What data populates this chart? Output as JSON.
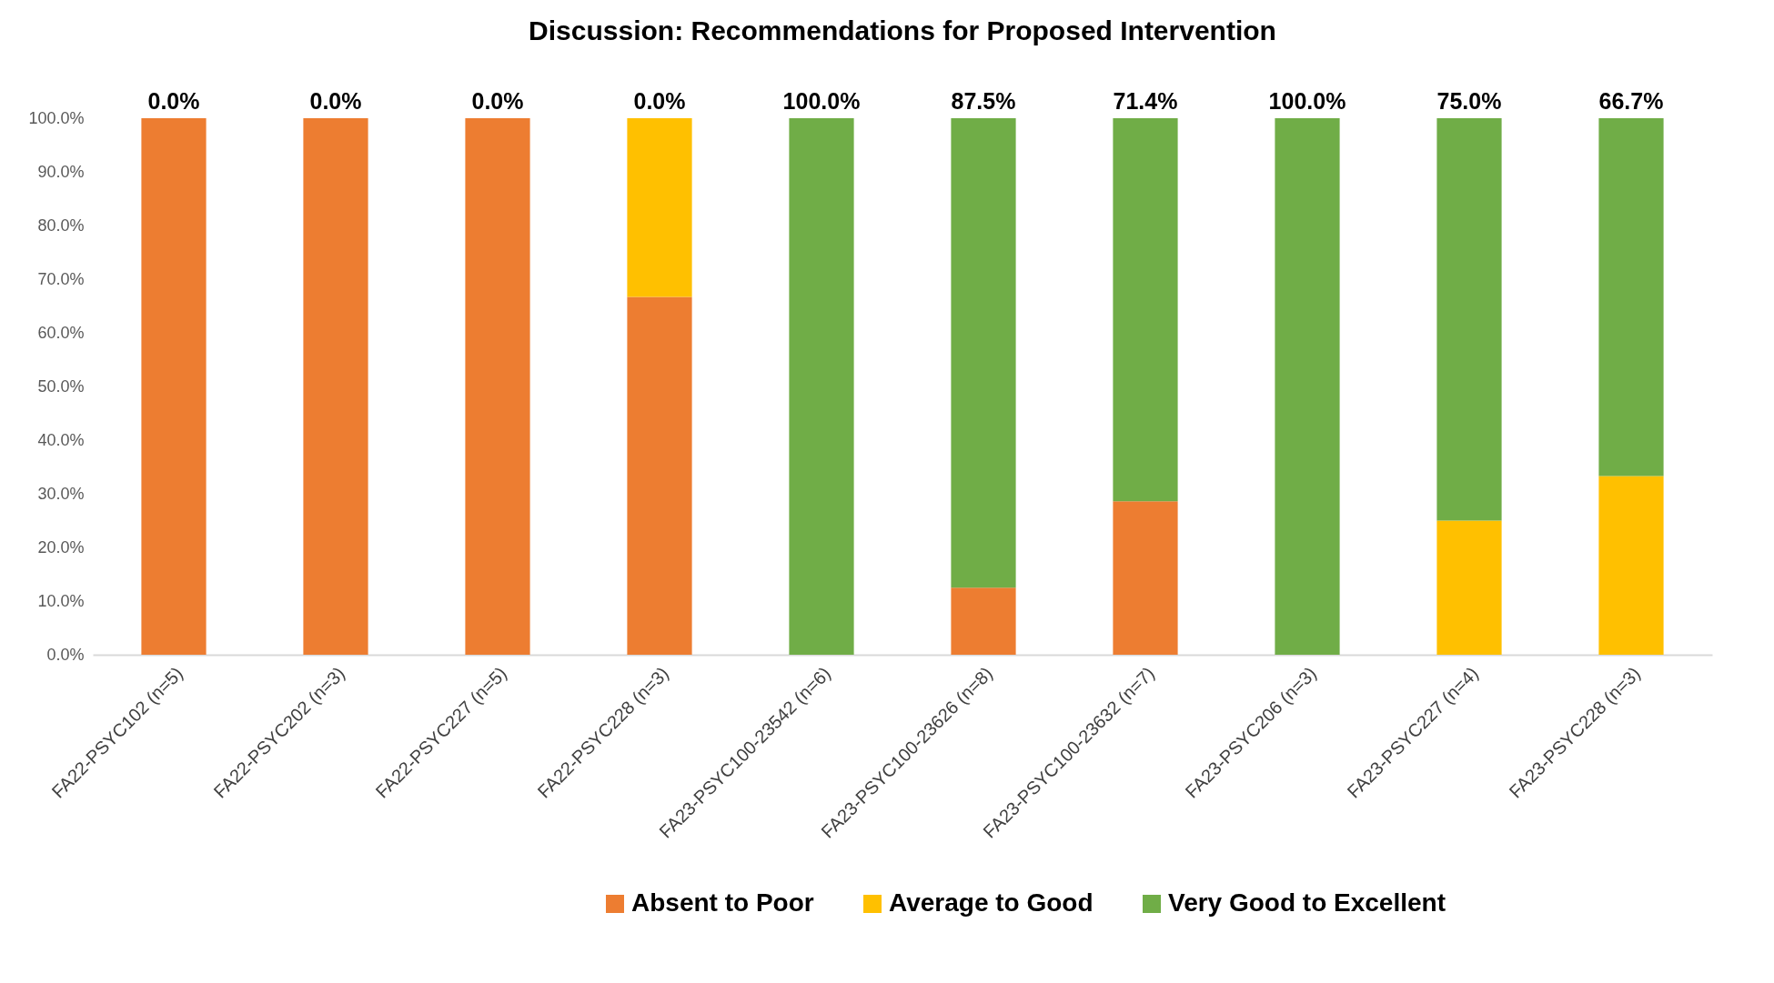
{
  "chart_data": {
    "type": "bar",
    "title": "Discussion: Recommendations for Proposed Intervention",
    "categories": [
      "FA22-PSYC102 (n=5)",
      "FA22-PSYC202 (n=3)",
      "FA22-PSYC227 (n=5)",
      "FA22-PSYC228 (n=3)",
      "FA23-PSYC100-23542 (n=6)",
      "FA23-PSYC100-23626 (n=8)",
      "FA23-PSYC100-23632 (n=7)",
      "FA23-PSYC206 (n=3)",
      "FA23-PSYC227 (n=4)",
      "FA23-PSYC228 (n=3)"
    ],
    "series": [
      {
        "name": "Absent to Poor",
        "color": "#ed7d31",
        "values": [
          100,
          100,
          100,
          66.7,
          0,
          12.5,
          28.6,
          0,
          0,
          0
        ]
      },
      {
        "name": "Average to Good",
        "color": "#ffc000",
        "values": [
          0,
          0,
          0,
          33.3,
          0,
          0,
          0,
          0,
          25,
          33.3
        ]
      },
      {
        "name": "Very Good to Excellent",
        "color": "#70ad47",
        "values": [
          0,
          0,
          0,
          0,
          100,
          87.5,
          71.4,
          100,
          75,
          66.7
        ],
        "value_labels": [
          "0.0%",
          "0.0%",
          "0.0%",
          "0.0%",
          "100.0%",
          "87.5%",
          "71.4%",
          "100.0%",
          "75.0%",
          "66.7%"
        ]
      }
    ],
    "stacked": true,
    "ylim": [
      0,
      100
    ],
    "yticks": [
      {
        "value": 0,
        "label": "0.0%"
      },
      {
        "value": 10,
        "label": "10.0%"
      },
      {
        "value": 20,
        "label": "20.0%"
      },
      {
        "value": 30,
        "label": "30.0%"
      },
      {
        "value": 40,
        "label": "40.0%"
      },
      {
        "value": 50,
        "label": "50.0%"
      },
      {
        "value": 60,
        "label": "60.0%"
      },
      {
        "value": 70,
        "label": "70.0%"
      },
      {
        "value": 80,
        "label": "80.0%"
      },
      {
        "value": 90,
        "label": "90.0%"
      },
      {
        "value": 100,
        "label": "100.0%"
      }
    ],
    "grid": false,
    "legend": "bottom"
  }
}
